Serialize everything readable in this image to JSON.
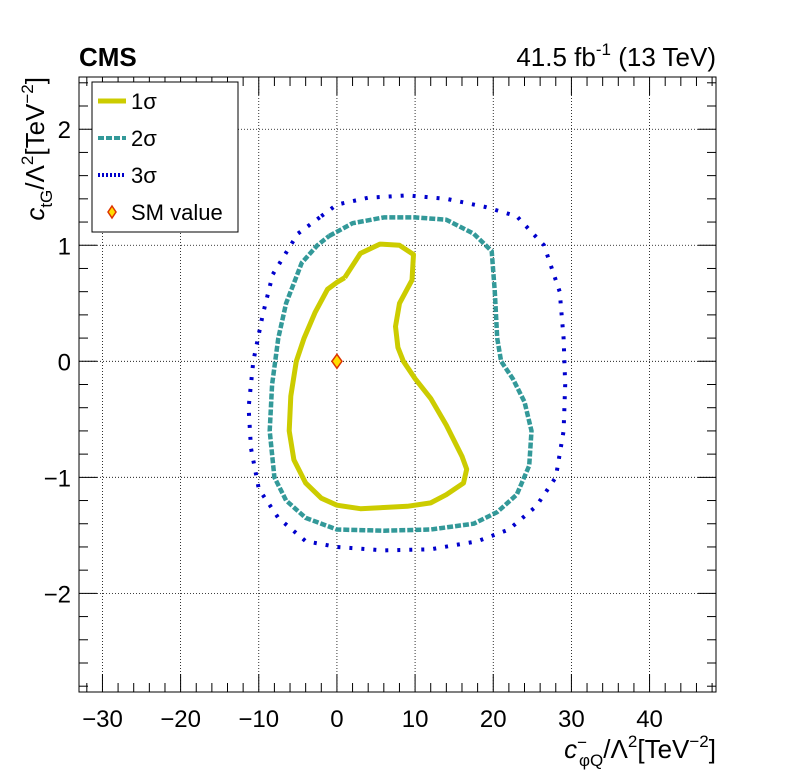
{
  "chart_data": {
    "type": "line",
    "experiment_label": "CMS",
    "luminosity": {
      "value": "41.5 fb",
      "exponent": "-1",
      "energy": "(13 TeV)"
    },
    "xlabel": {
      "base": "c",
      "sup": "−",
      "sub": "φQ",
      "rest": "/Λ",
      "rest_sup": "2",
      "unit": "[TeV",
      "unit_sup": "−2",
      "unit_end": "]"
    },
    "ylabel": {
      "base": "c",
      "sub": "tG",
      "rest": "/Λ",
      "rest_sup": "2",
      "unit": "[TeV",
      "unit_sup": "−2",
      "unit_end": "]"
    },
    "xlim": [
      -33,
      48.5
    ],
    "ylim": [
      -2.85,
      2.45
    ],
    "x_ticks": [
      -30,
      -20,
      -10,
      0,
      10,
      20,
      30,
      40
    ],
    "x_tick_labels": [
      "−30",
      "−20",
      "−10",
      "0",
      "10",
      "20",
      "30",
      "40"
    ],
    "y_ticks": [
      -2,
      -1,
      0,
      1,
      2
    ],
    "y_tick_labels": [
      "−2",
      "−1",
      "0",
      "1",
      "2"
    ],
    "grid": true,
    "legend_position": "top-left",
    "series": [
      {
        "name": "1σ",
        "color": "#cccc00",
        "style": "solid",
        "closed": true,
        "points": [
          [
            1,
            0.72
          ],
          [
            3,
            0.93
          ],
          [
            5.5,
            1.01
          ],
          [
            8,
            1.0
          ],
          [
            9.8,
            0.92
          ],
          [
            9.6,
            0.7
          ],
          [
            8,
            0.5
          ],
          [
            7.5,
            0.3
          ],
          [
            7.8,
            0.12
          ],
          [
            8.5,
            0.0
          ],
          [
            10,
            -0.15
          ],
          [
            12,
            -0.32
          ],
          [
            14,
            -0.55
          ],
          [
            16,
            -0.82
          ],
          [
            16.6,
            -0.93
          ],
          [
            16.2,
            -1.05
          ],
          [
            14,
            -1.15
          ],
          [
            12,
            -1.22
          ],
          [
            9,
            -1.25
          ],
          [
            6,
            -1.26
          ],
          [
            3,
            -1.27
          ],
          [
            0,
            -1.24
          ],
          [
            -2,
            -1.18
          ],
          [
            -4,
            -1.05
          ],
          [
            -5.5,
            -0.85
          ],
          [
            -6.1,
            -0.6
          ],
          [
            -5.9,
            -0.3
          ],
          [
            -5.2,
            0.0
          ],
          [
            -4.2,
            0.2
          ],
          [
            -2.8,
            0.42
          ],
          [
            -1.2,
            0.62
          ],
          [
            0,
            0.68
          ],
          [
            1,
            0.72
          ]
        ]
      },
      {
        "name": "2σ",
        "color": "#339999",
        "style": "dashed",
        "closed": true,
        "points": [
          [
            -1,
            1.08
          ],
          [
            2,
            1.19
          ],
          [
            6,
            1.24
          ],
          [
            10,
            1.24
          ],
          [
            14,
            1.22
          ],
          [
            17.5,
            1.1
          ],
          [
            19.8,
            0.95
          ],
          [
            20.2,
            0.6
          ],
          [
            20.5,
            0.2
          ],
          [
            21,
            0.0
          ],
          [
            22.5,
            -0.15
          ],
          [
            24,
            -0.35
          ],
          [
            24.9,
            -0.6
          ],
          [
            24.6,
            -0.9
          ],
          [
            23,
            -1.15
          ],
          [
            20.5,
            -1.3
          ],
          [
            17.5,
            -1.4
          ],
          [
            12,
            -1.45
          ],
          [
            6,
            -1.46
          ],
          [
            0,
            -1.45
          ],
          [
            -4,
            -1.35
          ],
          [
            -6.5,
            -1.2
          ],
          [
            -8,
            -1.0
          ],
          [
            -8.6,
            -0.6
          ],
          [
            -8.3,
            -0.2
          ],
          [
            -7.5,
            0.2
          ],
          [
            -6.5,
            0.5
          ],
          [
            -4.5,
            0.85
          ],
          [
            -2.5,
            1.0
          ],
          [
            -1,
            1.08
          ]
        ]
      },
      {
        "name": "3σ",
        "color": "#0000cc",
        "style": "dotted",
        "closed": true,
        "points": [
          [
            -2,
            1.25
          ],
          [
            0,
            1.35
          ],
          [
            4,
            1.41
          ],
          [
            9,
            1.43
          ],
          [
            14,
            1.4
          ],
          [
            19,
            1.33
          ],
          [
            23,
            1.25
          ],
          [
            26.5,
            1.0
          ],
          [
            28.5,
            0.6
          ],
          [
            29,
            0.2
          ],
          [
            29.2,
            -0.2
          ],
          [
            29,
            -0.6
          ],
          [
            28,
            -1.0
          ],
          [
            25.5,
            -1.25
          ],
          [
            22,
            -1.45
          ],
          [
            18,
            -1.55
          ],
          [
            12,
            -1.62
          ],
          [
            6,
            -1.63
          ],
          [
            0,
            -1.6
          ],
          [
            -4,
            -1.55
          ],
          [
            -7.5,
            -1.35
          ],
          [
            -10,
            -1.1
          ],
          [
            -11,
            -0.75
          ],
          [
            -11.3,
            -0.4
          ],
          [
            -10.7,
            0.0
          ],
          [
            -9.5,
            0.4
          ],
          [
            -8.2,
            0.75
          ],
          [
            -5,
            1.1
          ],
          [
            -2,
            1.25
          ]
        ]
      }
    ],
    "marker": {
      "name": "SM value",
      "x": 0,
      "y": 0,
      "fill": "#ffdd00",
      "stroke": "#dd3300"
    }
  }
}
